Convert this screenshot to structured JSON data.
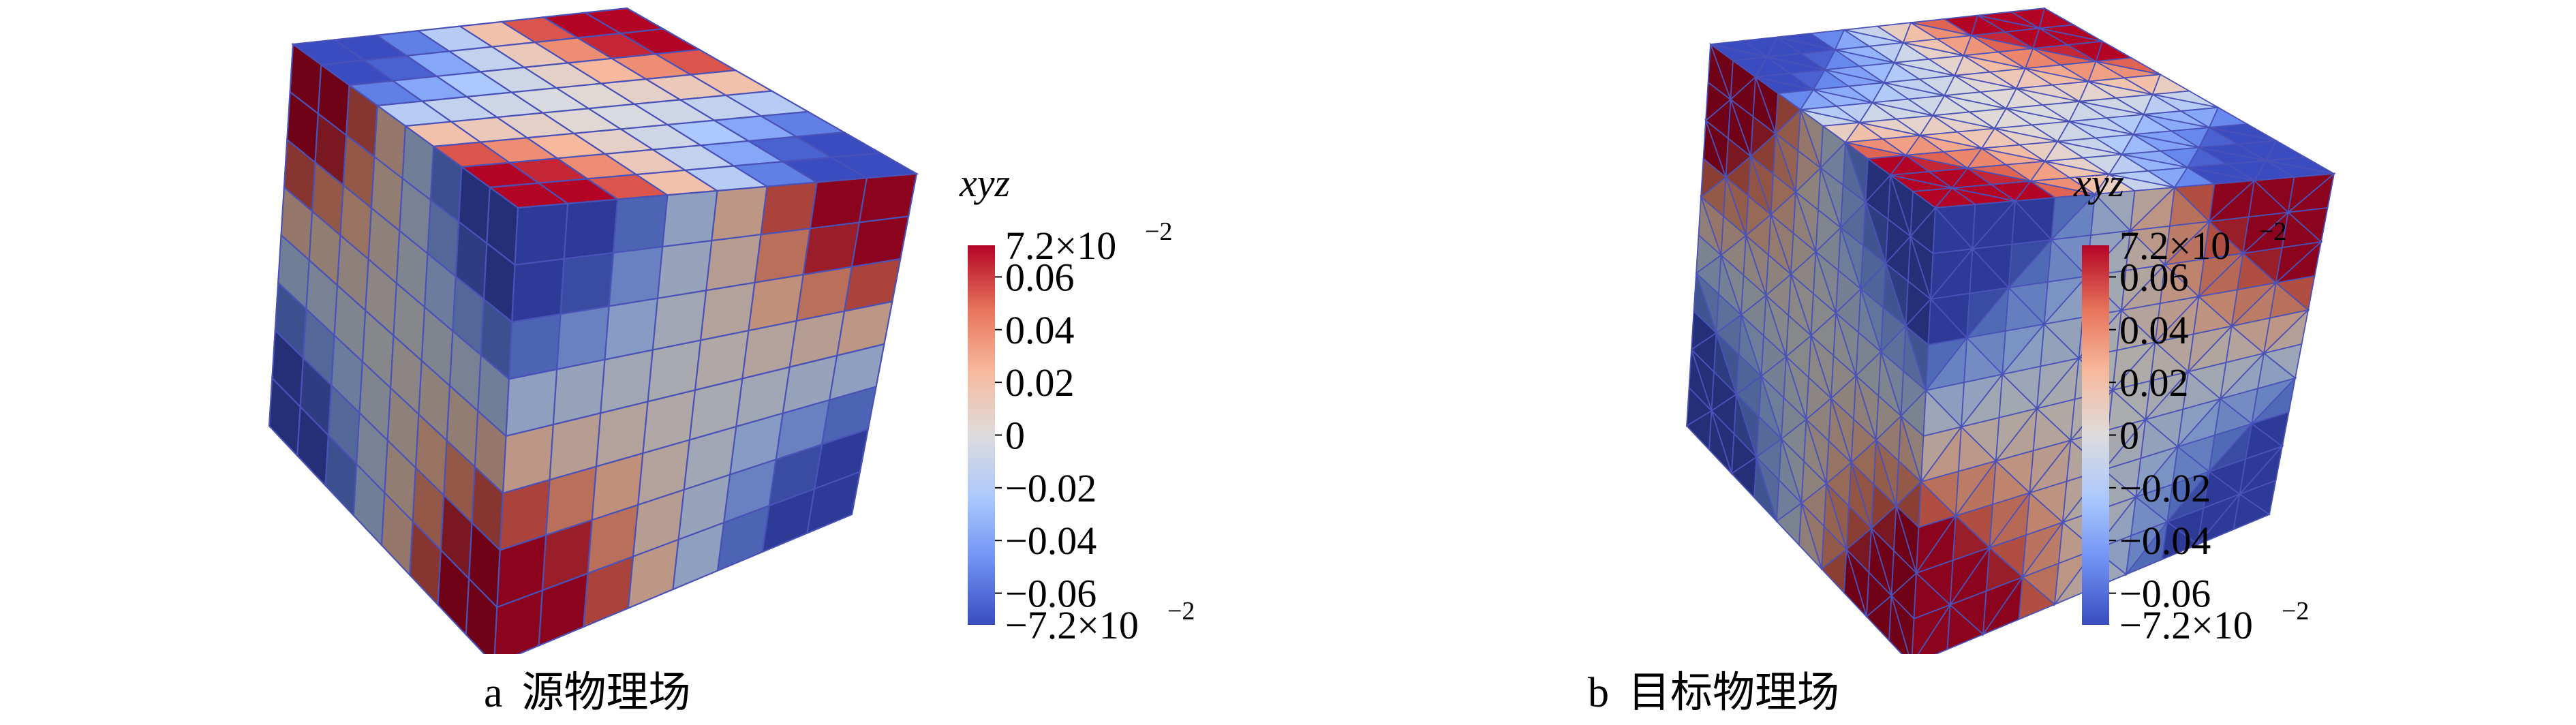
{
  "panels": [
    {
      "id": "a",
      "letter": "a",
      "caption": "源物理场",
      "mesh": "hexahedral",
      "colorbar": {
        "title": "xyz",
        "max_label": "7.2×10",
        "max_exp": "−2",
        "min_label": "−7.2×10",
        "min_exp": "−2",
        "ticks": [
          "0.06",
          "0.04",
          "0.02",
          "0",
          "−0.02",
          "−0.04",
          "−0.06"
        ]
      }
    },
    {
      "id": "b",
      "letter": "b",
      "caption": "目标物理场",
      "mesh": "tetrahedral",
      "colorbar": {
        "title": "xyz",
        "max_label": "7.2×10",
        "max_exp": "−2",
        "min_label": "−7.2×10",
        "min_exp": "−2",
        "ticks": [
          "0.06",
          "0.04",
          "0.02",
          "0",
          "−0.02",
          "−0.04",
          "−0.06"
        ]
      }
    }
  ],
  "colormap": {
    "stops": [
      "#3a4cc0",
      "#6f92f3",
      "#aac7fd",
      "#dddcdc",
      "#f7b89c",
      "#e7745b",
      "#b40426"
    ]
  },
  "range": [
    -0.072,
    0.072
  ]
}
